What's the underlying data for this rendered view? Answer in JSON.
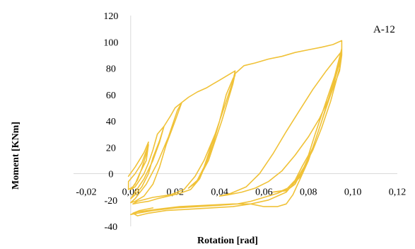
{
  "chart_data": {
    "type": "line",
    "title": "",
    "annotation": "A-12",
    "xlabel": "Rotation [rad]",
    "ylabel": "Moment [KNm]",
    "xlim": [
      -0.02,
      0.12
    ],
    "ylim": [
      -40,
      120
    ],
    "x_tick_labels": [
      "-0,02",
      "0,00",
      "0,02",
      "0,04",
      "0,06",
      "0,08",
      "0,10",
      "0,12"
    ],
    "y_tick_labels": [
      "-40",
      "-20",
      "0",
      "20",
      "40",
      "60",
      "80",
      "100",
      "120"
    ],
    "grid": false,
    "line_color": "#F0C238",
    "series": [
      {
        "points": [
          [
            -0.001,
            -2
          ],
          [
            0.002,
            5
          ],
          [
            0.006,
            16
          ],
          [
            0.008,
            24
          ],
          [
            0.007,
            15
          ],
          [
            0.005,
            4
          ],
          [
            0.003,
            -5
          ],
          [
            0.001,
            -10
          ],
          [
            -0.001,
            -12
          ],
          [
            -0.001,
            -6
          ],
          [
            0.002,
            0
          ],
          [
            0.005,
            8
          ],
          [
            0.008,
            22
          ],
          [
            0.007,
            10
          ],
          [
            0.004,
            0
          ],
          [
            0.002,
            -8
          ],
          [
            0.0,
            -12
          ],
          [
            0.002,
            -10
          ],
          [
            0.006,
            0
          ],
          [
            0.008,
            8
          ],
          [
            0.01,
            18
          ],
          [
            0.012,
            30
          ],
          [
            0.015,
            36
          ],
          [
            0.013,
            25
          ],
          [
            0.01,
            12
          ],
          [
            0.008,
            0
          ],
          [
            0.005,
            -10
          ],
          [
            0.002,
            -16
          ],
          [
            0.0,
            -19
          ],
          [
            0.002,
            -14
          ],
          [
            0.006,
            -4
          ],
          [
            0.01,
            10
          ],
          [
            0.013,
            24
          ],
          [
            0.015,
            36
          ],
          [
            0.018,
            44
          ],
          [
            0.02,
            50
          ],
          [
            0.023,
            54
          ],
          [
            0.02,
            40
          ],
          [
            0.016,
            22
          ],
          [
            0.013,
            5
          ],
          [
            0.01,
            -8
          ],
          [
            0.006,
            -17
          ],
          [
            0.002,
            -21
          ],
          [
            0.0,
            -22
          ],
          [
            0.002,
            -19
          ],
          [
            0.007,
            -8
          ],
          [
            0.012,
            8
          ],
          [
            0.017,
            28
          ],
          [
            0.021,
            48
          ],
          [
            0.023,
            54
          ],
          [
            0.026,
            58
          ],
          [
            0.03,
            62
          ],
          [
            0.034,
            65
          ],
          [
            0.037,
            68
          ],
          [
            0.04,
            71
          ],
          [
            0.044,
            75
          ],
          [
            0.047,
            78
          ],
          [
            0.046,
            70
          ],
          [
            0.043,
            55
          ],
          [
            0.04,
            40
          ],
          [
            0.037,
            22
          ],
          [
            0.034,
            8
          ],
          [
            0.031,
            -4
          ],
          [
            0.027,
            -12
          ],
          [
            0.022,
            -15
          ],
          [
            0.017,
            -17
          ],
          [
            0.012,
            -19
          ],
          [
            0.008,
            -21
          ],
          [
            0.004,
            -22
          ],
          [
            0.001,
            -23
          ],
          [
            0.003,
            -21
          ],
          [
            0.01,
            -18
          ],
          [
            0.018,
            -16
          ],
          [
            0.024,
            -12
          ],
          [
            0.029,
            -2
          ],
          [
            0.033,
            10
          ],
          [
            0.038,
            30
          ],
          [
            0.043,
            55
          ],
          [
            0.047,
            75
          ],
          [
            0.046,
            72
          ],
          [
            0.043,
            60
          ],
          [
            0.04,
            40
          ],
          [
            0.036,
            20
          ],
          [
            0.033,
            5
          ],
          [
            0.03,
            -5
          ],
          [
            0.026,
            -11
          ],
          [
            0.03,
            -6
          ],
          [
            0.035,
            10
          ],
          [
            0.041,
            40
          ],
          [
            0.046,
            68
          ],
          [
            0.047,
            76
          ],
          [
            0.049,
            79
          ],
          [
            0.051,
            82
          ],
          [
            0.056,
            84
          ],
          [
            0.062,
            87
          ],
          [
            0.068,
            89
          ],
          [
            0.074,
            92
          ],
          [
            0.08,
            94
          ],
          [
            0.086,
            96
          ],
          [
            0.091,
            98
          ],
          [
            0.095,
            101
          ],
          [
            0.095,
            90
          ],
          [
            0.091,
            70
          ],
          [
            0.087,
            50
          ],
          [
            0.083,
            30
          ],
          [
            0.08,
            14
          ],
          [
            0.077,
            5
          ],
          [
            0.074,
            -5
          ],
          [
            0.07,
            -12
          ],
          [
            0.066,
            -15
          ],
          [
            0.06,
            -18
          ],
          [
            0.054,
            -21
          ],
          [
            0.048,
            -23
          ],
          [
            0.04,
            -24
          ],
          [
            0.03,
            -25
          ],
          [
            0.02,
            -26
          ],
          [
            0.01,
            -28
          ],
          [
            0.003,
            -30
          ],
          [
            0.0,
            -31
          ],
          [
            0.003,
            -29
          ],
          [
            0.012,
            -27
          ],
          [
            0.022,
            -25
          ],
          [
            0.034,
            -24
          ],
          [
            0.046,
            -23
          ],
          [
            0.054,
            -23
          ],
          [
            0.06,
            -25
          ],
          [
            0.066,
            -25
          ],
          [
            0.07,
            -23
          ],
          [
            0.073,
            -16
          ],
          [
            0.076,
            -5
          ],
          [
            0.08,
            10
          ],
          [
            0.085,
            35
          ],
          [
            0.09,
            60
          ],
          [
            0.095,
            90
          ],
          [
            0.094,
            78
          ],
          [
            0.09,
            60
          ],
          [
            0.085,
            42
          ],
          [
            0.08,
            28
          ],
          [
            0.074,
            14
          ],
          [
            0.068,
            2
          ],
          [
            0.062,
            -6
          ],
          [
            0.056,
            -11
          ],
          [
            0.05,
            -14
          ],
          [
            0.044,
            -16
          ],
          [
            0.04,
            -17
          ],
          [
            0.045,
            -15
          ],
          [
            0.052,
            -10
          ],
          [
            0.058,
            0
          ],
          [
            0.064,
            15
          ],
          [
            0.07,
            32
          ],
          [
            0.076,
            48
          ],
          [
            0.082,
            64
          ],
          [
            0.088,
            78
          ],
          [
            0.095,
            93
          ],
          [
            0.094,
            85
          ],
          [
            0.091,
            68
          ],
          [
            0.088,
            50
          ],
          [
            0.085,
            35
          ],
          [
            0.082,
            20
          ],
          [
            0.079,
            7
          ],
          [
            0.076,
            -3
          ],
          [
            0.072,
            -10
          ],
          [
            0.068,
            -13
          ],
          [
            0.064,
            -14
          ],
          [
            0.07,
            -13
          ],
          [
            0.074,
            -8
          ],
          [
            0.078,
            5
          ],
          [
            0.082,
            20
          ],
          [
            0.086,
            40
          ],
          [
            0.09,
            62
          ],
          [
            0.095,
            95
          ],
          [
            0.094,
            80
          ],
          [
            0.09,
            55
          ],
          [
            0.086,
            35
          ],
          [
            0.082,
            18
          ],
          [
            0.078,
            5
          ],
          [
            0.074,
            -6
          ],
          [
            0.07,
            -14
          ],
          [
            0.062,
            -20
          ],
          [
            0.054,
            -23
          ],
          [
            0.046,
            -25
          ],
          [
            0.036,
            -26
          ],
          [
            0.026,
            -27
          ],
          [
            0.016,
            -28
          ],
          [
            0.008,
            -30
          ],
          [
            0.003,
            -32
          ],
          [
            0.001,
            -30
          ],
          [
            0.004,
            -28
          ],
          [
            0.01,
            -26
          ]
        ]
      }
    ]
  }
}
